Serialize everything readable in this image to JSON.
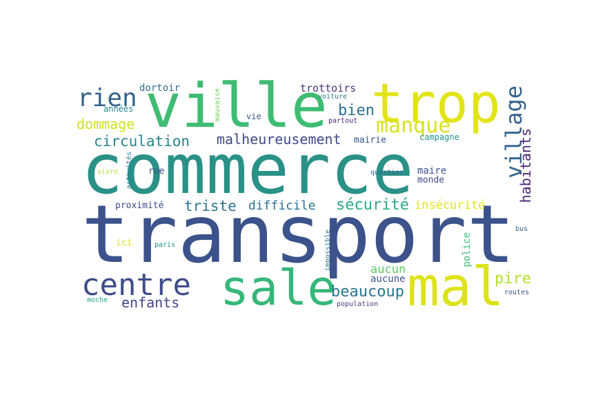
{
  "words": [
    {
      "id": "commerce",
      "text": "commerce",
      "color": "#2a9187"
    },
    {
      "id": "transport",
      "text": "transport",
      "color": "#3b528b"
    },
    {
      "id": "ville",
      "text": "ville",
      "color": "#3fbc73"
    },
    {
      "id": "trop",
      "text": "trop",
      "color": "#e2e418"
    },
    {
      "id": "sale",
      "text": "sale",
      "color": "#35b779"
    },
    {
      "id": "mal",
      "text": "mal",
      "color": "#dde318"
    },
    {
      "id": "centre",
      "text": "centre",
      "color": "#3e4c8a"
    },
    {
      "id": "rien",
      "text": "rien",
      "color": "#33638d"
    },
    {
      "id": "village",
      "text": "village",
      "color": "#33638d"
    },
    {
      "id": "manque",
      "text": "manque",
      "color": "#d8e219"
    },
    {
      "id": "habitants",
      "text": "habitants",
      "color": "#482576"
    },
    {
      "id": "malheureusement",
      "text": "malheureusement",
      "color": "#3e4989"
    },
    {
      "id": "circulation",
      "text": "circulation",
      "color": "#25848e"
    },
    {
      "id": "dommage",
      "text": "dommage",
      "color": "#d0e11c"
    },
    {
      "id": "bien",
      "text": "bien",
      "color": "#2d708e"
    },
    {
      "id": "securite",
      "text": "sécurité",
      "color": "#25ab82"
    },
    {
      "id": "triste",
      "text": "triste",
      "color": "#2c738e"
    },
    {
      "id": "difficile",
      "text": "difficile",
      "color": "#2c728e"
    },
    {
      "id": "insecurite",
      "text": "insécurité",
      "color": "#e5e419"
    },
    {
      "id": "enfants",
      "text": "enfants",
      "color": "#414487"
    },
    {
      "id": "beaucoup",
      "text": "beaucoup",
      "color": "#2a768e"
    },
    {
      "id": "aucun",
      "text": "aucun",
      "color": "#5ec962"
    },
    {
      "id": "aucune",
      "text": "aucune",
      "color": "#3b528b"
    },
    {
      "id": "pire",
      "text": "pire",
      "color": "#b5de2b"
    },
    {
      "id": "police",
      "text": "police",
      "color": "#3dbc74"
    },
    {
      "id": "dortoir",
      "text": "dortoir",
      "color": "#31688e"
    },
    {
      "id": "trottoirs",
      "text": "trottoirs",
      "color": "#46337e"
    },
    {
      "id": "annees",
      "text": "années",
      "color": "#26828e"
    },
    {
      "id": "mauvaise",
      "text": "mauvaise",
      "color": "#6ece58"
    },
    {
      "id": "vie",
      "text": "vie",
      "color": "#38588c"
    },
    {
      "id": "voiture",
      "text": "voiture",
      "color": "#2a788e"
    },
    {
      "id": "partout",
      "text": "partout",
      "color": "#482374"
    },
    {
      "id": "mairie",
      "text": "mairie",
      "color": "#3a548c"
    },
    {
      "id": "campagne",
      "text": "campagne",
      "color": "#21918c"
    },
    {
      "id": "activites",
      "text": "activités",
      "color": "#2a788e"
    },
    {
      "id": "vivre",
      "text": "vivre",
      "color": "#addc30"
    },
    {
      "id": "rue",
      "text": "rue",
      "color": "#3b528b"
    },
    {
      "id": "quartier",
      "text": "quartier",
      "color": "#31688e"
    },
    {
      "id": "maire",
      "text": "maire",
      "color": "#3b528b"
    },
    {
      "id": "monde",
      "text": "monde",
      "color": "#3e4a89"
    },
    {
      "id": "proximite",
      "text": "proximité",
      "color": "#3f4889"
    },
    {
      "id": "ici",
      "text": "ici",
      "color": "#dde318"
    },
    {
      "id": "paris",
      "text": "paris",
      "color": "#23898e"
    },
    {
      "id": "impossible",
      "text": "impossible",
      "color": "#2d708e"
    },
    {
      "id": "bus",
      "text": "bus",
      "color": "#31688e"
    },
    {
      "id": "moche",
      "text": "moche",
      "color": "#20a386"
    },
    {
      "id": "routes",
      "text": "routes",
      "color": "#3b528b"
    },
    {
      "id": "population",
      "text": "population",
      "color": "#443983"
    }
  ]
}
